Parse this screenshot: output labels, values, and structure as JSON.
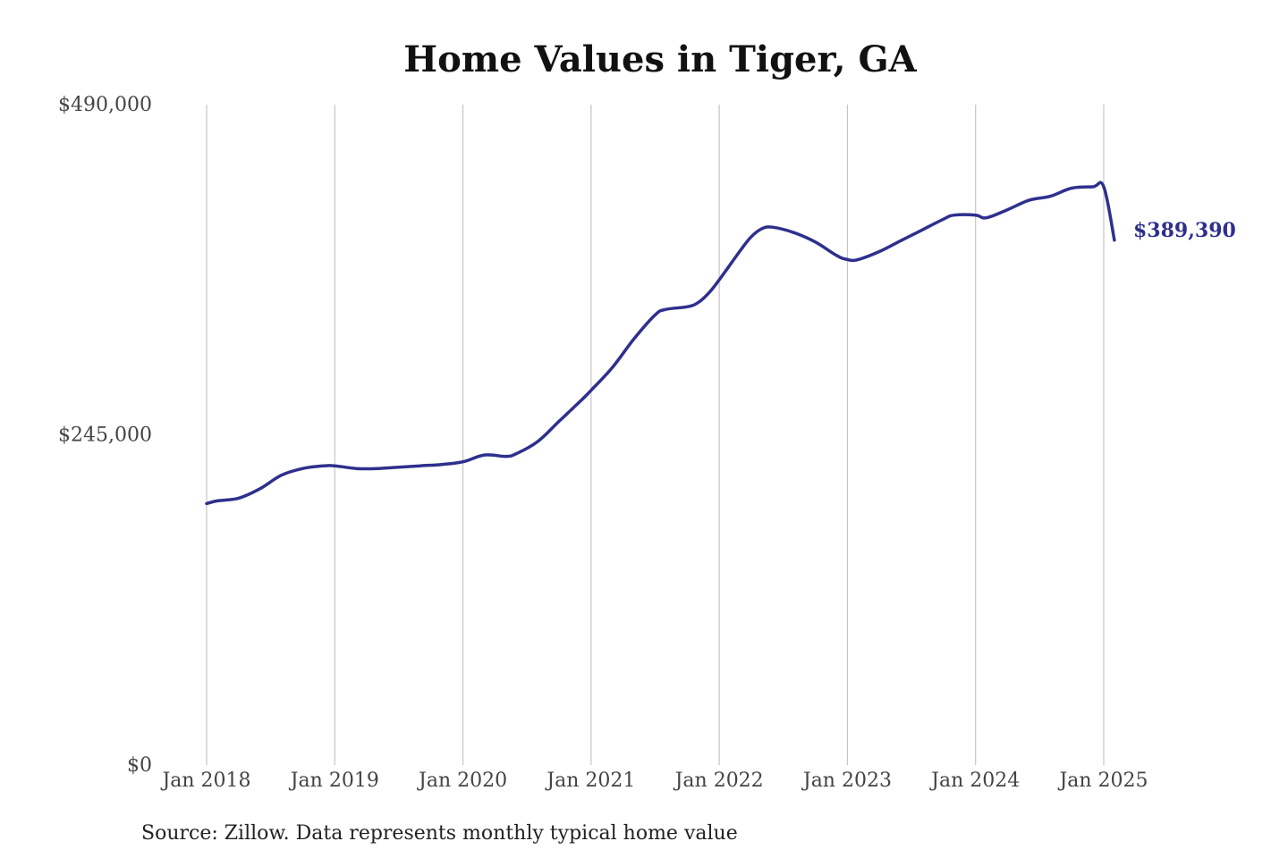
{
  "chart_data": {
    "type": "line",
    "title": "Home Values in Tiger, GA",
    "xlabel": "",
    "ylabel": "",
    "source_note": "Source: Zillow. Data represents monthly typical home value",
    "ylim": [
      0,
      490000
    ],
    "y_ticks": [
      {
        "value": 0,
        "label": "$0"
      },
      {
        "value": 245000,
        "label": "$245,000"
      },
      {
        "value": 490000,
        "label": "$490,000"
      }
    ],
    "x_ticks": [
      {
        "value": "2018-01",
        "label": "Jan 2018"
      },
      {
        "value": "2019-01",
        "label": "Jan 2019"
      },
      {
        "value": "2020-01",
        "label": "Jan 2020"
      },
      {
        "value": "2021-01",
        "label": "Jan 2021"
      },
      {
        "value": "2022-01",
        "label": "Jan 2022"
      },
      {
        "value": "2023-01",
        "label": "Jan 2023"
      },
      {
        "value": "2024-01",
        "label": "Jan 2024"
      },
      {
        "value": "2025-01",
        "label": "Jan 2025"
      }
    ],
    "grid": "vertical",
    "line_color": "#2f2f8e",
    "end_label": "$389,390",
    "series": [
      {
        "name": "",
        "x": [
          "2018-01",
          "2018-02",
          "2018-04",
          "2018-06",
          "2018-08",
          "2018-10",
          "2018-12",
          "2019-01",
          "2019-03",
          "2019-05",
          "2019-07",
          "2019-09",
          "2019-11",
          "2020-01",
          "2020-03",
          "2020-05",
          "2020-06",
          "2020-08",
          "2020-10",
          "2020-12",
          "2021-01",
          "2021-03",
          "2021-05",
          "2021-07",
          "2021-08",
          "2021-10",
          "2021-11",
          "2021-12",
          "2022-01",
          "2022-03",
          "2022-04",
          "2022-05",
          "2022-06",
          "2022-08",
          "2022-10",
          "2022-12",
          "2023-01",
          "2023-02",
          "2023-04",
          "2023-06",
          "2023-08",
          "2023-10",
          "2023-11",
          "2024-01",
          "2024-02",
          "2024-04",
          "2024-06",
          "2024-08",
          "2024-10",
          "2024-12",
          "2025-01",
          "2025-02"
        ],
        "y": [
          194000,
          196000,
          198000,
          205000,
          215000,
          220000,
          222000,
          222000,
          220000,
          220000,
          221000,
          222000,
          223000,
          225000,
          230000,
          229000,
          231000,
          240000,
          255000,
          270000,
          278000,
          295000,
          316000,
          334000,
          338000,
          340000,
          343000,
          350000,
          360000,
          382000,
          392000,
          398000,
          399000,
          395000,
          388000,
          378000,
          375000,
          375000,
          381000,
          389000,
          397000,
          405000,
          408000,
          408000,
          406000,
          412000,
          419000,
          422000,
          428000,
          429000,
          429000,
          389390
        ]
      }
    ]
  }
}
